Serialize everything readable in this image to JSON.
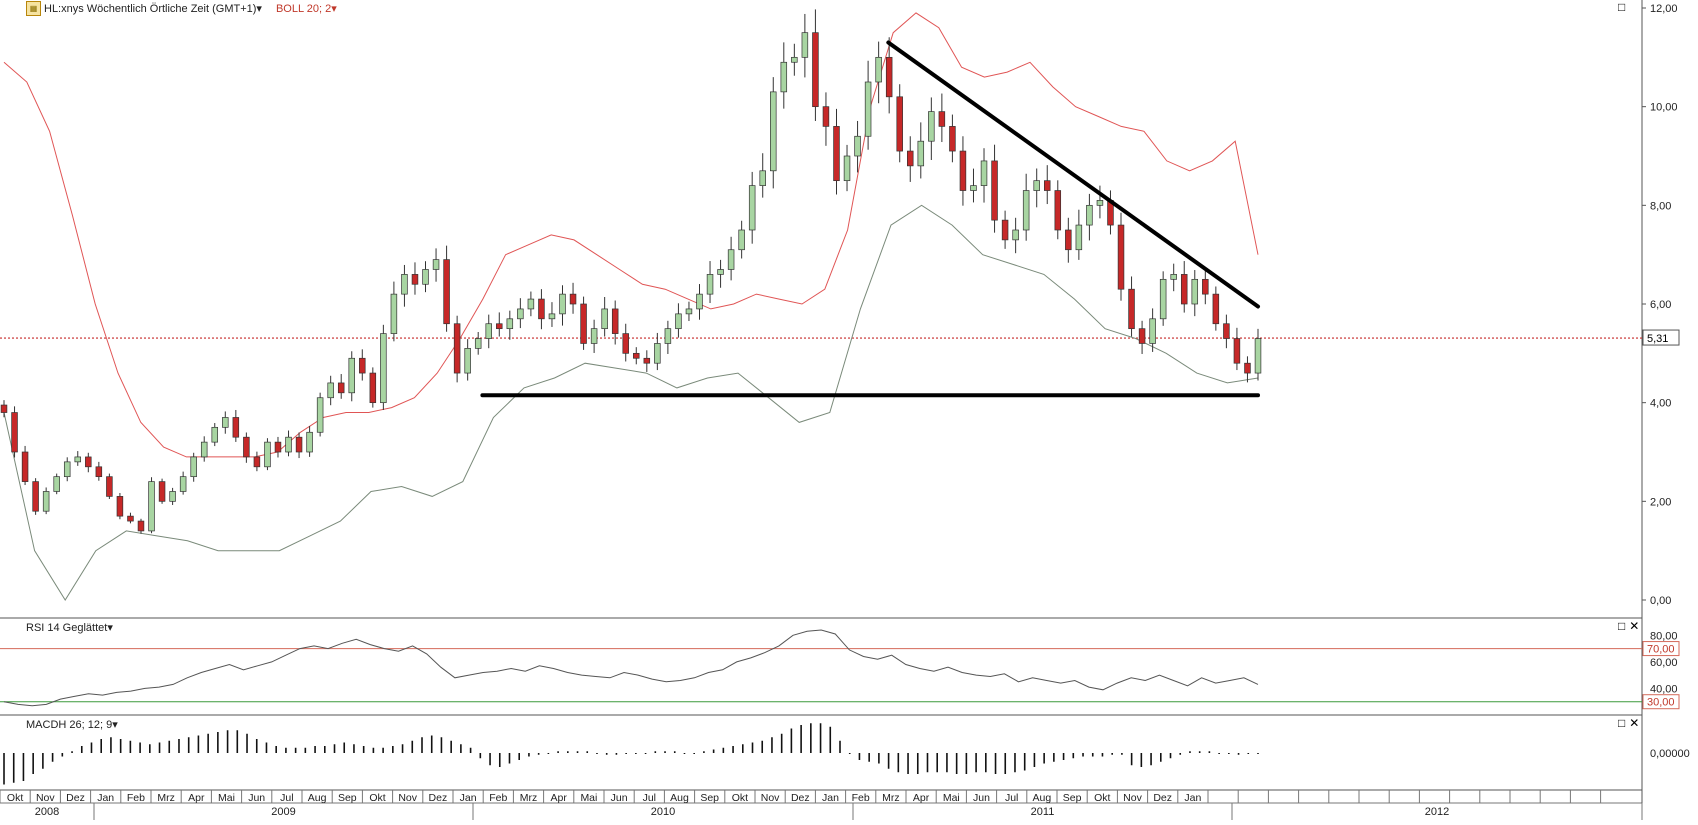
{
  "header": {
    "symbol_label": "HL:xnys Wöchentlich Örtliche Zeit (GMT+1)",
    "symbol_icon": "ticker-icon",
    "indicator_label": "BOLL 20; 2",
    "dropdown_glyph": "▾"
  },
  "rsi_header": {
    "label": "RSI 14 Geglättet"
  },
  "macd_header": {
    "label": "MACDH 26; 12; 9"
  },
  "controls": {
    "maximize_glyph": "□",
    "close_glyph": "✕"
  },
  "price_axis": {
    "ticks": [
      "12,00",
      "10,00",
      "8,00",
      "6,00",
      "4,00",
      "2,00",
      "0,00"
    ],
    "last_price": "5,31"
  },
  "rsi_axis": {
    "ticks": [
      "80,00",
      "60,00",
      "40,00"
    ],
    "upper_level": "70,00",
    "lower_level": "30,00"
  },
  "macd_axis": {
    "ticks": [
      "0,00000"
    ]
  },
  "months": [
    "Okt",
    "Nov",
    "Dez",
    "Jan",
    "Feb",
    "Mrz",
    "Apr",
    "Mai",
    "Jun",
    "Jul",
    "Aug",
    "Sep",
    "Okt",
    "Nov",
    "Dez",
    "Jan",
    "Feb",
    "Mrz",
    "Apr",
    "Mai",
    "Jun",
    "Jul",
    "Aug",
    "Sep",
    "Okt",
    "Nov",
    "Dez",
    "Jan",
    "Feb",
    "Mrz",
    "Apr",
    "Mai",
    "Jun",
    "Jul",
    "Aug",
    "Sep",
    "Okt",
    "Nov",
    "Dez",
    "Jan"
  ],
  "years": [
    "2008",
    "2009",
    "2010",
    "2011",
    "2012"
  ],
  "colors": {
    "up": "#a8d5a2",
    "down": "#c62828",
    "upper_band": "#e05555",
    "lower_band": "#7a8a7a",
    "price_line": "#c62828",
    "rsi_upper": "#d46a5a",
    "rsi_lower": "#3c9a3c"
  },
  "chart_data": [
    {
      "type": "candlestick",
      "title": "HL:xnys Wöchentlich",
      "ylim": [
        0,
        12
      ],
      "last_price": 5.31,
      "x_start": "2008-10-06",
      "x_end": "2012-01-30",
      "close_series": [
        3.8,
        3.0,
        2.4,
        1.8,
        2.2,
        2.5,
        2.8,
        2.9,
        2.7,
        2.5,
        2.1,
        1.7,
        1.6,
        1.4,
        2.4,
        2.0,
        2.2,
        2.5,
        2.9,
        3.2,
        3.5,
        3.7,
        3.3,
        2.9,
        2.7,
        3.2,
        3.0,
        3.3,
        3.0,
        3.4,
        4.1,
        4.4,
        4.2,
        4.9,
        4.6,
        4.0,
        5.4,
        6.2,
        6.6,
        6.4,
        6.7,
        6.9,
        5.6,
        4.6,
        5.1,
        5.3,
        5.6,
        5.5,
        5.7,
        5.9,
        6.1,
        5.7,
        5.8,
        6.2,
        6.0,
        5.2,
        5.5,
        5.9,
        5.4,
        5.0,
        4.9,
        4.8,
        5.2,
        5.5,
        5.8,
        5.9,
        6.2,
        6.6,
        6.7,
        7.1,
        7.5,
        8.4,
        8.7,
        10.3,
        10.9,
        11.0,
        11.5,
        10.0,
        9.6,
        8.5,
        9.0,
        9.4,
        10.5,
        11.0,
        10.2,
        9.1,
        8.8,
        9.3,
        9.9,
        9.6,
        9.1,
        8.3,
        8.4,
        8.9,
        7.7,
        7.3,
        7.5,
        8.3,
        8.5,
        8.3,
        7.5,
        7.1,
        7.6,
        8.0,
        8.1,
        7.6,
        6.3,
        5.5,
        5.2,
        5.7,
        6.5,
        6.6,
        6.0,
        6.5,
        6.2,
        5.6,
        5.3,
        4.8,
        4.6,
        5.3
      ],
      "upper_band": [
        10.9,
        10.5,
        9.5,
        7.8,
        6.0,
        4.6,
        3.6,
        3.1,
        2.9,
        2.9,
        2.9,
        2.9,
        3.0,
        3.4,
        3.7,
        3.8,
        3.8,
        3.9,
        4.1,
        4.6,
        5.3,
        6.1,
        7.0,
        7.2,
        7.4,
        7.3,
        7.0,
        6.7,
        6.4,
        6.3,
        6.1,
        5.9,
        6.0,
        6.2,
        6.1,
        6.0,
        6.3,
        7.5,
        10.0,
        11.5,
        11.9,
        11.6,
        10.8,
        10.6,
        10.7,
        10.9,
        10.4,
        10.0,
        9.8,
        9.6,
        9.5,
        8.9,
        8.7,
        8.9,
        9.3,
        7.0
      ],
      "lower_band": [
        3.8,
        1.0,
        0.0,
        1.0,
        1.4,
        1.3,
        1.2,
        1.0,
        1.0,
        1.0,
        1.3,
        1.6,
        2.2,
        2.3,
        2.1,
        2.4,
        3.7,
        4.3,
        4.5,
        4.8,
        4.7,
        4.6,
        4.3,
        4.5,
        4.6,
        4.1,
        3.6,
        3.8,
        5.9,
        7.6,
        8.0,
        7.6,
        7.0,
        6.8,
        6.6,
        6.1,
        5.5,
        5.3,
        5.0,
        4.6,
        4.4,
        4.5
      ],
      "annotations": [
        {
          "type": "trendline",
          "from": [
            "2011-02-07",
            11.3
          ],
          "to": [
            "2012-01-30",
            5.95
          ]
        },
        {
          "type": "hline",
          "from": [
            "2010-01-11",
            4.15
          ],
          "to": [
            "2012-01-30",
            4.15
          ]
        }
      ]
    },
    {
      "type": "line",
      "title": "RSI 14 Geglättet",
      "ylim": [
        20,
        90
      ],
      "levels": [
        70,
        30
      ],
      "values": [
        30,
        28,
        27,
        28,
        32,
        34,
        36,
        35,
        37,
        38,
        40,
        41,
        43,
        48,
        52,
        55,
        58,
        54,
        57,
        60,
        65,
        70,
        72,
        70,
        74,
        77,
        73,
        70,
        68,
        72,
        66,
        56,
        48,
        50,
        52,
        53,
        55,
        53,
        57,
        55,
        52,
        50,
        49,
        48,
        52,
        50,
        47,
        45,
        46,
        48,
        52,
        54,
        60,
        63,
        67,
        72,
        80,
        83,
        84,
        81,
        69,
        64,
        62,
        65,
        58,
        55,
        53,
        56,
        52,
        50,
        49,
        51,
        45,
        48,
        46,
        44,
        46,
        41,
        39,
        44,
        48,
        46,
        50,
        46,
        42,
        48,
        44,
        46,
        48,
        43
      ]
    },
    {
      "type": "bar",
      "title": "MACDH 26; 12; 9",
      "values": [
        -0.9,
        -0.85,
        -0.8,
        -0.6,
        -0.45,
        -0.25,
        -0.1,
        0.05,
        0.2,
        0.3,
        0.4,
        0.45,
        0.4,
        0.35,
        0.3,
        0.25,
        0.3,
        0.35,
        0.4,
        0.45,
        0.5,
        0.55,
        0.6,
        0.65,
        0.65,
        0.55,
        0.4,
        0.3,
        0.2,
        0.15,
        0.15,
        0.15,
        0.2,
        0.2,
        0.25,
        0.3,
        0.25,
        0.2,
        0.15,
        0.15,
        0.2,
        0.25,
        0.35,
        0.45,
        0.5,
        0.45,
        0.35,
        0.25,
        0.15,
        -0.15,
        -0.35,
        -0.4,
        -0.3,
        -0.2,
        -0.1,
        -0.05,
        0.0,
        0.05,
        0.05,
        0.05,
        0.05,
        0.0,
        -0.05,
        -0.05,
        0.0,
        0.0,
        0.0,
        0.05,
        0.05,
        0.05,
        0.0,
        0.0,
        0.05,
        0.1,
        0.15,
        0.2,
        0.25,
        0.3,
        0.35,
        0.45,
        0.55,
        0.7,
        0.8,
        0.85,
        0.85,
        0.75,
        0.35,
        0.0,
        -0.2,
        -0.25,
        -0.3,
        -0.45,
        -0.55,
        -0.6,
        -0.6,
        -0.55,
        -0.55,
        -0.55,
        -0.6,
        -0.6,
        -0.55,
        -0.55,
        -0.6,
        -0.6,
        -0.55,
        -0.5,
        -0.4,
        -0.3,
        -0.25,
        -0.2,
        -0.15,
        -0.1,
        -0.1,
        -0.1,
        -0.05,
        -0.05,
        -0.35,
        -0.4,
        -0.35,
        -0.25,
        -0.15,
        -0.05,
        0.05,
        0.05,
        0.05,
        0.0,
        0.0,
        -0.05,
        0.0,
        0.0
      ]
    }
  ]
}
